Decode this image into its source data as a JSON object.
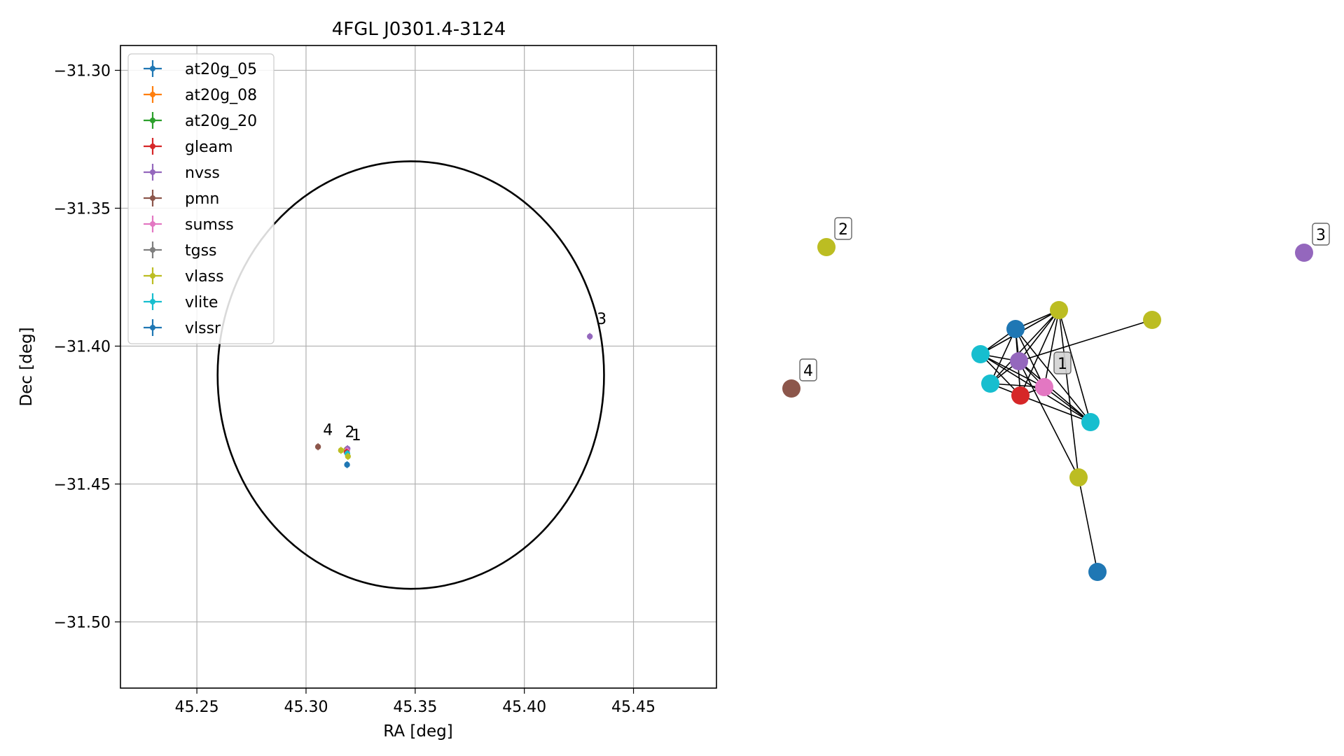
{
  "chart_data": [
    {
      "type": "scatter",
      "title": "4FGL J0301.4-3124",
      "xlabel": "RA [deg]",
      "ylabel": "Dec [deg]",
      "xlim": [
        45.215,
        45.488
      ],
      "ylim": [
        -31.524,
        -31.291
      ],
      "xticks": [
        45.25,
        45.3,
        45.35,
        45.4,
        45.45
      ],
      "xtick_labels": [
        "45.25",
        "45.30",
        "45.35",
        "45.40",
        "45.45"
      ],
      "yticks": [
        -31.3,
        -31.35,
        -31.4,
        -31.45,
        -31.5
      ],
      "ytick_labels": [
        "−31.30",
        "−31.35",
        "−31.40",
        "−31.45",
        "−31.50"
      ],
      "grid": true,
      "legend_position": "top-left",
      "legend": [
        {
          "name": "at20g_05",
          "color": "#1f77b4"
        },
        {
          "name": "at20g_08",
          "color": "#ff7f0e"
        },
        {
          "name": "at20g_20",
          "color": "#2ca02c"
        },
        {
          "name": "gleam",
          "color": "#d62728"
        },
        {
          "name": "nvss",
          "color": "#9467bd"
        },
        {
          "name": "pmn",
          "color": "#8c564b"
        },
        {
          "name": "sumss",
          "color": "#e377c2"
        },
        {
          "name": "tgss",
          "color": "#7f7f7f"
        },
        {
          "name": "vlass",
          "color": "#bcbd22"
        },
        {
          "name": "vlite",
          "color": "#17becf"
        },
        {
          "name": "vlssr",
          "color": "#1f77b4"
        }
      ],
      "ellipse": {
        "center": [
          45.348,
          -31.4105
        ],
        "semi_ra": 0.0885,
        "semi_dec": 0.0775
      },
      "points": [
        {
          "ra": 45.3185,
          "dec": -31.4375,
          "series": "vlass"
        },
        {
          "ra": 45.319,
          "dec": -31.4372,
          "series": "nvss"
        },
        {
          "ra": 45.3188,
          "dec": -31.438,
          "series": "sumss"
        },
        {
          "ra": 45.3186,
          "dec": -31.4385,
          "series": "gleam"
        },
        {
          "ra": 45.3189,
          "dec": -31.439,
          "series": "vlite"
        },
        {
          "ra": 45.3192,
          "dec": -31.44,
          "series": "vlass"
        },
        {
          "ra": 45.316,
          "dec": -31.4378,
          "series": "vlass"
        },
        {
          "ra": 45.3188,
          "dec": -31.443,
          "series": "vlssr"
        },
        {
          "ra": 45.3055,
          "dec": -31.4365,
          "series": "pmn"
        },
        {
          "ra": 45.43,
          "dec": -31.3965,
          "series": "nvss"
        }
      ],
      "labels": [
        {
          "text": "1",
          "ra": 45.3208,
          "dec": -31.4342
        },
        {
          "text": "2",
          "ra": 45.3178,
          "dec": -31.433
        },
        {
          "text": "3",
          "ra": 45.4332,
          "dec": -31.392
        },
        {
          "text": "4",
          "ra": 45.3078,
          "dec": -31.4322
        }
      ]
    },
    {
      "type": "network",
      "nodes": [
        {
          "id": "n_vlssr_top",
          "color": "#1f77b4"
        },
        {
          "id": "n_vlass_top",
          "color": "#bcbd22"
        },
        {
          "id": "n_vlass_right",
          "color": "#bcbd22"
        },
        {
          "id": "n_vlite_left1",
          "color": "#17becf"
        },
        {
          "id": "n_nvss",
          "color": "#9467bd"
        },
        {
          "id": "n_vlite_left2",
          "color": "#17becf"
        },
        {
          "id": "n_gleam",
          "color": "#d62728"
        },
        {
          "id": "n_sumss",
          "color": "#e377c2"
        },
        {
          "id": "n_vlite_right",
          "color": "#17becf"
        },
        {
          "id": "n_vlass_low",
          "color": "#bcbd22"
        },
        {
          "id": "n_vlssr_bottom",
          "color": "#1f77b4"
        },
        {
          "id": "n_iso2",
          "color": "#bcbd22"
        },
        {
          "id": "n_iso3",
          "color": "#9467bd"
        },
        {
          "id": "n_iso4",
          "color": "#8c564b"
        }
      ],
      "group_labels": [
        {
          "text": "1",
          "node": "n_sumss"
        },
        {
          "text": "2",
          "node": "n_iso2"
        },
        {
          "text": "3",
          "node": "n_iso3"
        },
        {
          "text": "4",
          "node": "n_iso4"
        }
      ]
    }
  ]
}
